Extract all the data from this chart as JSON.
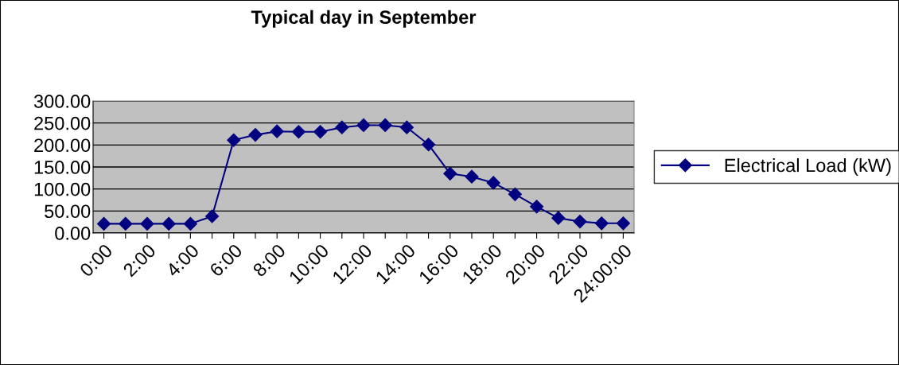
{
  "chart_data": {
    "type": "line",
    "title": "Typical day in September",
    "categories": [
      "0:00",
      null,
      "2:00",
      null,
      "4:00",
      null,
      "6:00",
      null,
      "8:00",
      null,
      "10:00",
      null,
      "12:00",
      null,
      "14:00",
      null,
      "16:00",
      null,
      "18:00",
      null,
      "20:00",
      null,
      "22:00",
      null,
      "24:00:00"
    ],
    "series": [
      {
        "name": "Electrical Load (kW)",
        "color": "#000080",
        "values": [
          21,
          21,
          21,
          21,
          21,
          38,
          211,
          223,
          231,
          230,
          230,
          240,
          245,
          245,
          240,
          201,
          135,
          128,
          114,
          88,
          60,
          34,
          26,
          22,
          22
        ]
      }
    ],
    "ylim": [
      0,
      300
    ],
    "yticks": [
      {
        "value": 0,
        "label": "0.00"
      },
      {
        "value": 50,
        "label": "50.00"
      },
      {
        "value": 100,
        "label": "100.00"
      },
      {
        "value": 150,
        "label": "150.00"
      },
      {
        "value": 200,
        "label": "200.00"
      },
      {
        "value": 250,
        "label": "250.00"
      },
      {
        "value": 300,
        "label": "300.00"
      }
    ],
    "grid": "y",
    "legend": "right",
    "marker": "diamond",
    "line_style": "solid"
  }
}
